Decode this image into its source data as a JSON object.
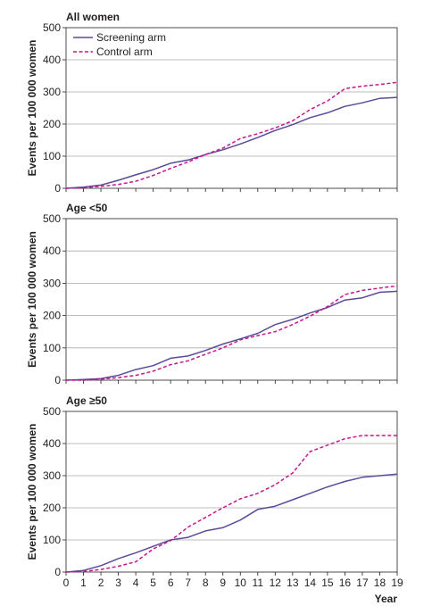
{
  "chart_data": [
    {
      "type": "line",
      "title": "All women",
      "ylabel": "Events per 100 000 women",
      "xlabel": "",
      "ylim": [
        0,
        500
      ],
      "yticks": [
        "0",
        "100",
        "200",
        "300",
        "400",
        "500"
      ],
      "x": [
        0,
        1,
        2,
        3,
        4,
        5,
        6,
        7,
        8,
        9,
        10,
        11,
        12,
        13,
        14,
        15,
        16,
        17,
        18,
        19
      ],
      "grid": true,
      "legend_position": "top-left",
      "series": [
        {
          "name": "Screening arm",
          "color": "#5b4a9a",
          "dash": "solid",
          "values": [
            0,
            4,
            10,
            25,
            42,
            58,
            78,
            88,
            105,
            120,
            138,
            158,
            180,
            198,
            220,
            235,
            255,
            266,
            280,
            283
          ]
        },
        {
          "name": "Control arm",
          "color": "#c4188d",
          "dash": "dashed",
          "values": [
            0,
            2,
            6,
            12,
            22,
            40,
            62,
            82,
            105,
            125,
            155,
            170,
            188,
            210,
            245,
            272,
            310,
            318,
            323,
            330
          ]
        }
      ]
    },
    {
      "type": "line",
      "title": "Age <50",
      "ylabel": "Events per 100 000 women",
      "xlabel": "",
      "ylim": [
        0,
        500
      ],
      "yticks": [
        "0",
        "100",
        "200",
        "300",
        "400",
        "500"
      ],
      "x": [
        0,
        1,
        2,
        3,
        4,
        5,
        6,
        7,
        8,
        9,
        10,
        11,
        12,
        13,
        14,
        15,
        16,
        17,
        18,
        19
      ],
      "grid": true,
      "series": [
        {
          "name": "Screening arm",
          "color": "#5b4a9a",
          "dash": "solid",
          "values": [
            0,
            2,
            5,
            15,
            33,
            45,
            68,
            75,
            92,
            112,
            128,
            145,
            172,
            188,
            208,
            225,
            248,
            255,
            272,
            275
          ]
        },
        {
          "name": "Control arm",
          "color": "#c4188d",
          "dash": "dashed",
          "values": [
            0,
            0,
            3,
            8,
            15,
            28,
            48,
            60,
            80,
            100,
            125,
            138,
            150,
            172,
            198,
            228,
            265,
            278,
            285,
            292
          ]
        }
      ]
    },
    {
      "type": "line",
      "title": "Age ≥50",
      "ylabel": "Events per 100 000 women",
      "xlabel": "Year",
      "ylim": [
        0,
        500
      ],
      "yticks": [
        "0",
        "100",
        "200",
        "300",
        "400",
        "500"
      ],
      "xticks": [
        "0",
        "1",
        "2",
        "3",
        "4",
        "5",
        "6",
        "7",
        "8",
        "9",
        "10",
        "11",
        "12",
        "13",
        "14",
        "15",
        "16",
        "17",
        "18",
        "19"
      ],
      "x": [
        0,
        1,
        2,
        3,
        4,
        5,
        6,
        7,
        8,
        9,
        10,
        11,
        12,
        13,
        14,
        15,
        16,
        17,
        18,
        19
      ],
      "grid": true,
      "series": [
        {
          "name": "Screening arm",
          "color": "#5b4a9a",
          "dash": "solid",
          "values": [
            0,
            5,
            20,
            42,
            60,
            80,
            100,
            108,
            128,
            138,
            162,
            195,
            205,
            225,
            245,
            265,
            282,
            295,
            300,
            305
          ]
        },
        {
          "name": "Control arm",
          "color": "#c4188d",
          "dash": "dashed",
          "values": [
            0,
            2,
            8,
            18,
            32,
            72,
            98,
            140,
            170,
            200,
            228,
            245,
            272,
            308,
            375,
            395,
            415,
            425,
            425,
            425
          ]
        }
      ]
    }
  ]
}
